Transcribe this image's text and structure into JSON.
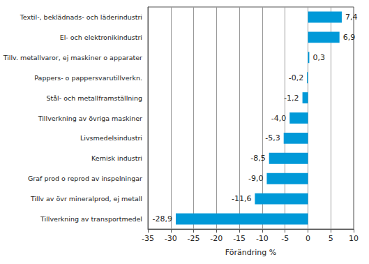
{
  "chart_data": {
    "type": "bar",
    "orientation": "horizontal",
    "categories": [
      "Textil-, beklädnads- och läderindustri",
      "El- och elektronikindustri",
      "Tillv. metallvaror, ej maskiner o apparater",
      "Pappers- o pappersvarutillverkn.",
      "Stål- och metallframställning",
      "Tillverkning av övriga maskiner",
      "Livsmedelsindustri",
      "Kemisk industri",
      "Graf prod o reprod av inspelningar",
      "Tillv av övr mineralprod, ej metall",
      "Tillverkning av transportmedel"
    ],
    "values": [
      7.4,
      6.9,
      0.3,
      -0.2,
      -1.2,
      -4.0,
      -5.3,
      -8.5,
      -9.0,
      -11.6,
      -28.9
    ],
    "value_labels": [
      "7,4",
      "6,9",
      "0,3",
      "-0,2",
      "-1,2",
      "-4,0",
      "-5,3",
      "-8,5",
      "-9,0",
      "-11,6",
      "-28,9"
    ],
    "data_labels": true,
    "color": "#0099d8",
    "x_label": "Förändring %",
    "xlim": [
      -35,
      10
    ],
    "xticks": [
      -35,
      -30,
      -25,
      -20,
      -15,
      -10,
      -5,
      0,
      5,
      10
    ],
    "grid": true
  }
}
